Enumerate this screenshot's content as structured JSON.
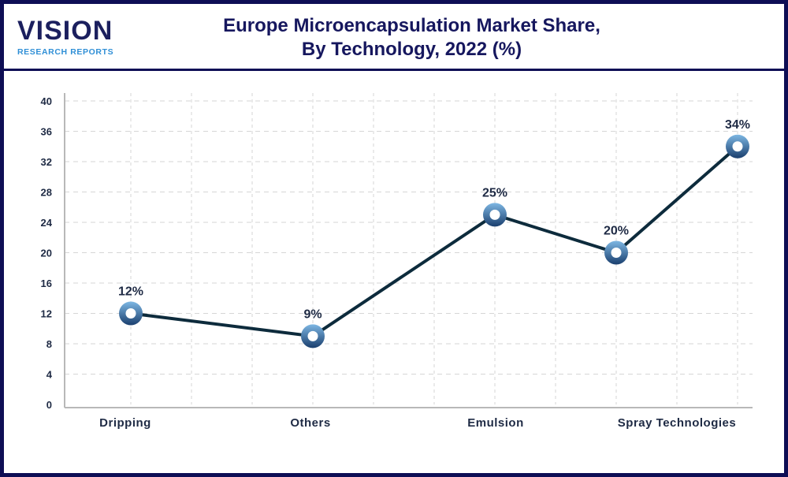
{
  "logo": {
    "name": "VISION",
    "tagline": "RESEARCH REPORTS"
  },
  "colors": {
    "frame": "#0e0e55",
    "line": "#0d2b3c",
    "marker_light": "#7db7e3",
    "marker_dark": "#1a3f6e"
  },
  "chart_data": {
    "type": "line",
    "title_lines": [
      "Europe Microencapsulation Market Share,",
      "By Technology, 2022 (%)"
    ],
    "categories": [
      "Dripping",
      "Others",
      "Emulsion",
      "",
      "Spray Technologies"
    ],
    "values": [
      12,
      9,
      25,
      20,
      34
    ],
    "data_labels": [
      "12%",
      "9%",
      "25%",
      "20%",
      "34%"
    ],
    "ylim": [
      0,
      40
    ],
    "yticks": [
      0,
      4,
      8,
      12,
      16,
      20,
      24,
      28,
      32,
      36,
      40
    ],
    "grid": true,
    "grid_style": "dashed",
    "legend": "none"
  }
}
